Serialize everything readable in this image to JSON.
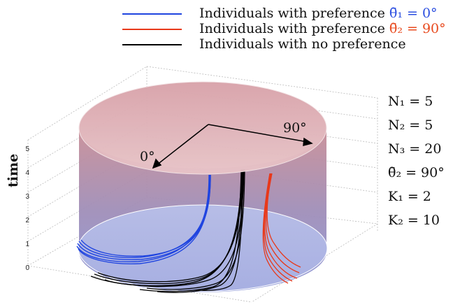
{
  "legend": [
    {
      "prefix": "Individuals with preference ",
      "symbol": "θ̄₁ = 0°",
      "color": "#1f44e0",
      "symbol_class": "accent-blue"
    },
    {
      "prefix": "Individuals with preference ",
      "symbol": "θ̄₂ = 90°",
      "color": "#e8391a",
      "symbol_class": "accent-red"
    },
    {
      "prefix": "Individuals with no preference",
      "symbol": "",
      "color": "#000000",
      "symbol_class": ""
    }
  ],
  "axis": {
    "ylabel": "time",
    "ticks": [
      "0",
      "1",
      "2",
      "3",
      "4",
      "5"
    ]
  },
  "annotations": {
    "angle_0": "0°",
    "angle_90": "90°"
  },
  "params": [
    "N₁ = 5",
    "N₂ = 5",
    "N₃ = 20",
    "θ̄₂ = 90°",
    "K₁ = 2",
    "K₂ = 10"
  ],
  "colors": {
    "blue": "#1f44e0",
    "red": "#e8391a",
    "black": "#000000",
    "cylinder_top": "#d9a0a6",
    "cylinder_bottom": "#9aa2dc"
  }
}
